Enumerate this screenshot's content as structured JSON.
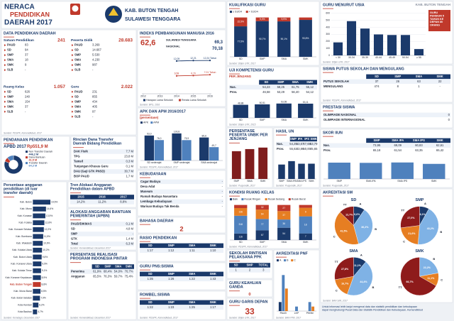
{
  "header": {
    "t1": "NERACA",
    "t2": "PENDIDIKAN",
    "t3": "DAERAH 2017",
    "region": "KAB. BUTON TENGAH",
    "province": "SULAWESI TENGGARA"
  },
  "panels": {
    "data_pendidikan": {
      "title": "DATA PENDIDIKAN DAERAH",
      "groups": [
        {
          "label": "Satuan Pendidikan",
          "total": "241",
          "rows": [
            [
              "PAUD",
              "83"
            ],
            [
              "SD",
              "94"
            ],
            [
              "SMP",
              "37"
            ],
            [
              "SMA",
              "18"
            ],
            [
              "SMK",
              "9"
            ],
            [
              "SLB",
              "-"
            ]
          ]
        },
        {
          "label": "Peserta Didik",
          "total": "28.683",
          "rows": [
            [
              "PAUD",
              "3.269"
            ],
            [
              "SD",
              "14.667"
            ],
            [
              "SMP",
              "5.530"
            ],
            [
              "SMA",
              "4.230"
            ],
            [
              "SMK",
              "987"
            ],
            [
              "SLB",
              "-"
            ]
          ]
        },
        {
          "label": "Ruang Kelas",
          "total": "1.057",
          "rows": [
            [
              "SD",
              "626"
            ],
            [
              "SMP",
              "240"
            ],
            [
              "SMA",
              "154"
            ],
            [
              "SMK",
              "37"
            ],
            [
              "SLB",
              "-"
            ]
          ]
        },
        {
          "label": "Guru",
          "total": "2.022",
          "rows": [
            [
              "PAUD",
              "231"
            ],
            [
              "SD",
              "855"
            ],
            [
              "SMP",
              "434"
            ],
            [
              "SMA",
              "405"
            ],
            [
              "SMK",
              "97"
            ],
            [
              "SLB",
              "-"
            ]
          ]
        }
      ],
      "source": "Sumber: PDSPK, Kemendikbud, 2017"
    },
    "pendanaan": {
      "title": "PENDANAAN PENDIDIKAN",
      "label": "APBD 2017",
      "total": "Rp551,9 M",
      "chart": {
        "type": "donut",
        "categories": [
          "Non Transfer Daerah",
          "Dana Bantuan",
          "Transfer Daerah"
        ],
        "values": [
          446.2,
          41.5,
          64.3
        ],
        "value_labels": [
          "446,2 M",
          "41,5 M",
          "64,3 M"
        ],
        "colors": [
          "#1b3a6b",
          "#c0392b",
          "#4f81bd"
        ]
      }
    },
    "rincian": {
      "title": "Rincian Dana Transfer Daerah Bidang Pendidikan",
      "rows": [
        [
          "DAK Fisik",
          "7,7 M"
        ],
        [
          "TPG",
          "23,8 M"
        ],
        [
          "Tamsil",
          "0,3 M"
        ],
        [
          "Tunjangan Khusus Guru",
          "0,1 M"
        ],
        [
          "DAU (Gaji GTK PNSD)",
          "30,7 M"
        ],
        [
          "BOP PAUD",
          "1,7 M"
        ]
      ]
    },
    "persen_kab": {
      "title": "Persentase anggaran pendidikan (di luar transfer daerah)",
      "chart": {
        "type": "hbar",
        "color": "#1b3a6b",
        "highlight": "Kab. Buton Tengah",
        "highlight_color": "#c0392b",
        "xlim": [
          0,
          25
        ],
        "categories": [
          "Kab. Buton",
          "Kab. Muna",
          "Kab. Konawe",
          "Kab. Kolaka",
          "Kab. Konawe Selatan",
          "Kab. Bombana",
          "Kab. Wakatobi",
          "Kab. Kolaka Utara",
          "Kab. Buton Utara",
          "Kab. Konawe Utara",
          "Kab. Kolaka Timur",
          "Kab. Konawe Kepulauan",
          "Kab. Buton Tengah",
          "Kab. Muna Barat",
          "Kab. Buton Selatan",
          "Kota Kendari",
          "Kota Baubau"
        ],
        "values": [
          19.5,
          14.6,
          13.9,
          12.8,
          12.2,
          11.5,
          10.9,
          10.2,
          9.8,
          9.5,
          9.1,
          8.9,
          8.8,
          8.5,
          7.9,
          6.2,
          4.7
        ],
        "value_labels": [
          "19,5%",
          "14,6%",
          "13,9%",
          "12,8%",
          "12,2%",
          "11,5%",
          "10,9%",
          "10,2%",
          "9,8%",
          "9,5%",
          "9,1%",
          "8,9%",
          "8,8%",
          "8,5%",
          "7,9%",
          "6,2%",
          "4,7%"
        ]
      },
      "source": "Sumber: Kemdagri, Desember 2017"
    },
    "tren": {
      "title": "Tren Alokasi Anggaran Pendidikan dalam APBD",
      "header": [
        "2015",
        "2016",
        "2017"
      ],
      "rows": [
        [
          "14,2%",
          "11,2%",
          "8,8%"
        ]
      ]
    },
    "apbn": {
      "title": "ALOKASI ANGGARAN BANTUAN PEMERINTAH (APBN)",
      "rows": [
        [
          "PAUD/DIKMAS",
          "0,1 M"
        ],
        [
          "SD",
          "4,8 M"
        ],
        [
          "SMP",
          "-"
        ],
        [
          "GTK",
          "1,4 M"
        ],
        [
          "Total",
          "6,3 M"
        ]
      ],
      "source": "Sumber: Kemendikbud, Desember 2017"
    },
    "pip": {
      "title": "PERSENTASE REALISASI PROGRAM INDONESIA PINTAR",
      "header": [
        "SD",
        "SMP",
        "SMA",
        "SMK"
      ],
      "rows": [
        [
          "Penerima",
          "61,9%",
          "68,4%",
          "54,0%",
          "70,7%"
        ],
        [
          "Anggaran",
          "65,5%",
          "76,3%",
          "59,7%",
          "75,4%"
        ]
      ],
      "source": "Sumber: Kemendikbud, Desember 2017"
    },
    "ipm": {
      "title": "INDEKS PEMBANGUNAN MANUSIA 2016",
      "value": "62,6",
      "compare": [
        [
          "SULAWESI TENGGARA",
          "69,3"
        ],
        [
          "NASIONAL",
          "70,18"
        ]
      ],
      "chart": {
        "type": "line",
        "x": [
          2014,
          2015,
          2016
        ],
        "xlim": [
          2012,
          2016
        ],
        "xticks": [
          2012,
          2013,
          2014,
          2015,
          2016
        ],
        "ylim": [
          0,
          15
        ],
        "series": [
          {
            "name": "Harapan Lama Sekolah",
            "color": "#1b3a6b",
            "values": [
              12.05,
              12.21,
              12.24
            ],
            "value_labels": [
              "12,05",
              "12,21",
              "12,24 Tahun"
            ]
          },
          {
            "name": "Rerata Lama Sekolah",
            "color": "#c0392b",
            "values": [
              6.58,
              6.7,
              7.01
            ],
            "value_labels": [
              "6,58",
              "6,70",
              "7,01 Tahun"
            ]
          }
        ]
      },
      "source": "Sumber: BPS, 2016"
    },
    "apk": {
      "title": "APK DAN APM 2016/2017",
      "subtitle": "(persentase)",
      "chart": {
        "type": "bar",
        "categories": [
          "SD sederajat",
          "SMP sederajat",
          "SMA sederajat"
        ],
        "ylim": [
          0,
          120
        ],
        "series": [
          {
            "name": "APK",
            "color": "#1b3a6b",
            "values": [
              93.0,
              100.8,
              85.6
            ],
            "value_labels": [
              "93,0",
              "100,8",
              "85,6"
            ]
          },
          {
            "name": "APM",
            "color": "#4f81bd",
            "values": [
              76.0,
              75.9,
              49.7
            ],
            "value_labels": [
              "76,0",
              "75,9",
              "49,7"
            ]
          }
        ]
      },
      "source": "Sumber: PDSPK, Kemendikbud, 2017"
    },
    "kebudayaan": {
      "title": "KEBUDAYAAN",
      "rows": [
        [
          "Cagar Budaya",
          "-"
        ],
        [
          "Desa Adat",
          "-"
        ],
        [
          "Museum",
          "-"
        ],
        [
          "Rumah Budaya Nusantara",
          "-"
        ],
        [
          "Lembaga Kebudayaan",
          "-"
        ],
        [
          "Warisan Budaya Tak Benda",
          "-"
        ]
      ]
    },
    "bahasa": {
      "title": "BAHASA DAERAH",
      "value": "2"
    },
    "rasio": {
      "title": "RASIO PENDIDIKAN",
      "header": [
        "SD",
        "SMP",
        "SMA",
        "SMK"
      ],
      "rows": [
        [
          "1:17",
          "1:12",
          "1:11",
          "1:10"
        ]
      ]
    },
    "guru_pns": {
      "title": "GURU PNS:SISWA",
      "header": [
        "SD",
        "SMP",
        "SMA",
        "SMK"
      ],
      "rows": [
        [
          "1:35",
          "1:26",
          "1:22",
          "1:43"
        ]
      ]
    },
    "rombel": {
      "title": "ROMBEL:SISWA",
      "header": [
        "SD",
        "SMP",
        "SMA",
        "SMK"
      ],
      "rows": [
        [
          "1:22",
          "1:23",
          "1:25",
          "1:17"
        ]
      ],
      "source": "Sumber: PDSPK, Kemendikbud, 2017"
    },
    "kualifikasi": {
      "title": "KUALIFIKASI GURU",
      "chart": {
        "type": "stack",
        "categories": [
          "SD",
          "SMP",
          "SMA",
          "SMK"
        ],
        "ylim": [
          0,
          100
        ],
        "series": [
          {
            "name": "≥ S1/D4",
            "color": "#1b3a6b",
            "values": [
              77.5,
              90.7,
              90.1,
              93.8
            ],
            "value_labels": [
              "77,5%",
              "90,7%",
              "90,1%",
              "93,8%"
            ]
          },
          {
            "name": "< S1/D4",
            "color": "#c0392b",
            "values": [
              22.5,
              9.3,
              9.9,
              6.2
            ],
            "value_labels": [
              "22,5%",
              "9,3%",
              "9,9%",
              "6,2%"
            ]
          }
        ]
      },
      "source": "Sumber: Ditjen GTK, 2017"
    },
    "ukg": {
      "title": "UJI KOMPETENSI GURU",
      "subtitle": "PER JENJANG",
      "header": [
        "SD",
        "SMP",
        "SMA",
        "SMK"
      ],
      "rows": [
        [
          "Nas.",
          "54,23",
          "58,25",
          "61,75",
          "55,12"
        ],
        [
          "Prov.",
          "46,58",
          "53,29",
          "56,40",
          "54,12"
        ]
      ],
      "chart": {
        "type": "bar",
        "categories": [
          "SD",
          "SMP",
          "SMA",
          "SMK"
        ],
        "ylim": [
          0,
          70
        ],
        "color": "#1b3a6b",
        "values": [
          48.88,
          50.51,
          53.55,
          53.11
        ],
        "value_labels": [
          "48,88",
          "50,51",
          "53,55",
          "53,11"
        ]
      },
      "source": "Sumber: Ditjen GTK, 2015"
    },
    "unbk": {
      "title": "PERSENTASE PESERTA UNBK PER JENJANG",
      "chart": {
        "type": "bar",
        "categories": [
          "SMP",
          "SMA",
          "SMK"
        ],
        "ylim": [
          0,
          100
        ],
        "color": "#7f1d1d",
        "values": [
          88.5,
          95.2,
          100
        ]
      },
      "source": "Sumber: Puspendik, 2017"
    },
    "hasil_un": {
      "title": "HASIL UN",
      "header": [
        "SMP",
        "IPA",
        "IPS",
        "SMK"
      ],
      "rows": [
        [
          "Nas.",
          "54,25",
          "53,67",
          "47,68",
          "53,79"
        ],
        [
          "Prov.",
          "55,63",
          "43,86",
          "50,00",
          "45,65"
        ]
      ],
      "chart": {
        "type": "bar",
        "categories": [
          "SMP",
          "SMA IPA",
          "SMA IPS",
          "SMK"
        ],
        "ylim": [
          0,
          80
        ],
        "color": "#1b3a6b",
        "values": [
          50.12,
          62.0,
          53.01,
          53.1
        ]
      },
      "source": "Sumber: Puspendik, 2017"
    },
    "kondisi": {
      "title": "KONDISI RUANG KELAS",
      "chart": {
        "type": "stack",
        "percent": true,
        "categories": [
          "SD",
          "SMP",
          "SMA",
          "SMK"
        ],
        "series": [
          {
            "name": "Baik",
            "color": "#1b3a6b",
            "values": [
              116,
              67,
              54,
              7
            ]
          },
          {
            "name": "Rusak Ringan",
            "color": "#4f81bd",
            "values": [
              318,
              77,
              36,
              18
            ]
          },
          {
            "name": "Rusak Sedang",
            "color": "#e67e22",
            "values": [
              136,
              64,
              37,
              9
            ]
          },
          {
            "name": "Rusak Berat",
            "color": "#c0392b",
            "values": [
              56,
              32,
              27,
              3
            ]
          }
        ]
      },
      "source": "Sumber: PDSPK, Kemendikbud, 2017"
    },
    "ppk": {
      "title": "SEKOLAH RINTISAN PELAKSANA PPK",
      "header": [
        "SD",
        "SMP",
        "TOTAL"
      ],
      "rows": [
        [
          "1",
          "2",
          "3"
        ]
      ]
    },
    "keahlian": {
      "title": "GURU KEAHLIAN GANDA",
      "value": "0"
    },
    "gdepan": {
      "title": "GURU GARIS DEPAN",
      "value": "33",
      "source": "Sumber: Ditjen GTK, 2017"
    },
    "akr_pnf": {
      "title": "AKREDITASI PNF",
      "chart": {
        "type": "bar",
        "categories": [
          "PAUD",
          "LKP",
          "PKBM"
        ],
        "ylim": [
          0,
          10
        ],
        "series": [
          {
            "name": "A",
            "color": "#1b3a6b",
            "values": [
              2,
              0,
              0
            ]
          },
          {
            "name": "B",
            "color": "#4f81bd",
            "values": [
              8,
              1,
              2
            ]
          },
          {
            "name": "C",
            "color": "#e67e22",
            "values": [
              5,
              0,
              1
            ]
          }
        ]
      },
      "source": "Sumber: BAN PNF, 2017"
    },
    "usia": {
      "title": "GURU MENURUT USIA",
      "region_label": "KAB. BUTON TENGAH",
      "note": "GURU PENSIUN 5 TAHUN KE DEPAN 80 ORANG",
      "chart": {
        "type": "bar",
        "categories": [
          "< 30",
          "30-34",
          "35-39",
          "40-44",
          "45-49",
          "50-54",
          "≥ 55"
        ],
        "ylim": [
          0,
          600
        ],
        "yticks": [
          0,
          100,
          200,
          300,
          400,
          500,
          600
        ],
        "color": "#1b3a6b",
        "values": [
          185,
          487,
          382,
          298,
          290,
          290,
          90
        ]
      },
      "source": "Sumber: Ditjen GTK, 2017"
    },
    "putus": {
      "title": "SISWA PUTUS SEKOLAH DAN MENGULANG",
      "header": [
        "SD",
        "SMP",
        "SMA",
        "SMK"
      ],
      "rows": [
        [
          "PUTUS SEKOLAH",
          "37",
          "26",
          "63",
          "22"
        ],
        [
          "MENGULANG",
          "474",
          "8",
          "1",
          "-"
        ]
      ],
      "source": "Sumber: PDSPK, Kemendikbud, 2017"
    },
    "prestasi": {
      "title": "PRESTASI SISWA",
      "rows": [
        [
          "OLIMPIADE NASIONAL",
          "0"
        ],
        [
          "OLIMPIADE INTERNASIONAL",
          "0"
        ]
      ]
    },
    "skor_iiun": {
      "title": "SKOR IIUN",
      "header": [
        "SMP",
        "SMA IPA",
        "SMA IPS",
        "SMK"
      ],
      "rows": [
        [
          "Nas.",
          "73,95",
          "69,09",
          "60,83",
          "62,61"
        ],
        [
          "Prov.",
          "65,18",
          "61,54",
          "63,35",
          "65,42"
        ]
      ],
      "chart": {
        "type": "bar",
        "categories": [
          "SMP",
          "SMA IPA",
          "SMA IPS",
          "SMK"
        ],
        "ylim": [
          0,
          80
        ],
        "color": "#4f81bd",
        "values": [
          60.5,
          59.7,
          61.1,
          55.9
        ]
      },
      "source": "Sumber: Puspendik, 2017"
    },
    "akr_sm": {
      "title": "AKREDITASI SM",
      "charts": [
        {
          "type": "pie",
          "title": "SD",
          "categories": [
            "A",
            "B",
            "C",
            "TT"
          ],
          "values": [
            9.6,
            36.2,
            41.5,
            12.7
          ],
          "value_labels": [
            "9,6%",
            "36,2%",
            "41,5%",
            "12,7%"
          ],
          "colors": [
            "#1b3a6b",
            "#7fb2e5",
            "#e67e22",
            "#8e1b1b"
          ]
        },
        {
          "type": "pie",
          "title": "SMP",
          "categories": [
            "A",
            "B",
            "C",
            "TT"
          ],
          "values": [
            8.1,
            43.2,
            21.6,
            27.0
          ],
          "value_labels": [
            "8,1%",
            "43,2%",
            "21,6%",
            "27,0%"
          ],
          "colors": [
            "#1b3a6b",
            "#7fb2e5",
            "#e67e22",
            "#8e1b1b"
          ]
        },
        {
          "type": "pie",
          "title": "SMA",
          "categories": [
            "A",
            "B",
            "C",
            "TT"
          ],
          "values": [
            11.1,
            44.4,
            16.7,
            27.8
          ],
          "value_labels": [
            "11,1%",
            "44,4%",
            "16,7%",
            "27,8%"
          ],
          "colors": [
            "#1b3a6b",
            "#7fb2e5",
            "#e67e22",
            "#8e1b1b"
          ]
        },
        {
          "type": "pie",
          "title": "SMK",
          "categories": [
            "B",
            "C",
            "TT"
          ],
          "values": [
            22.2,
            11.1,
            66.7
          ],
          "value_labels": [
            "22,2%",
            "11,1%",
            "66,7%"
          ],
          "colors": [
            "#7fb2e5",
            "#e67e22",
            "#8e1b1b"
          ]
        }
      ],
      "source": "Sumber: BAN S/M, 2017"
    }
  },
  "footnote": "Untuk informasi lebih lanjut mengenai data dan statistik pendidikan dan kebudayaan dapat menghubungi Pusat Data dan Statistik Pendidikan dan Kebudayaan, Kemendikbud"
}
